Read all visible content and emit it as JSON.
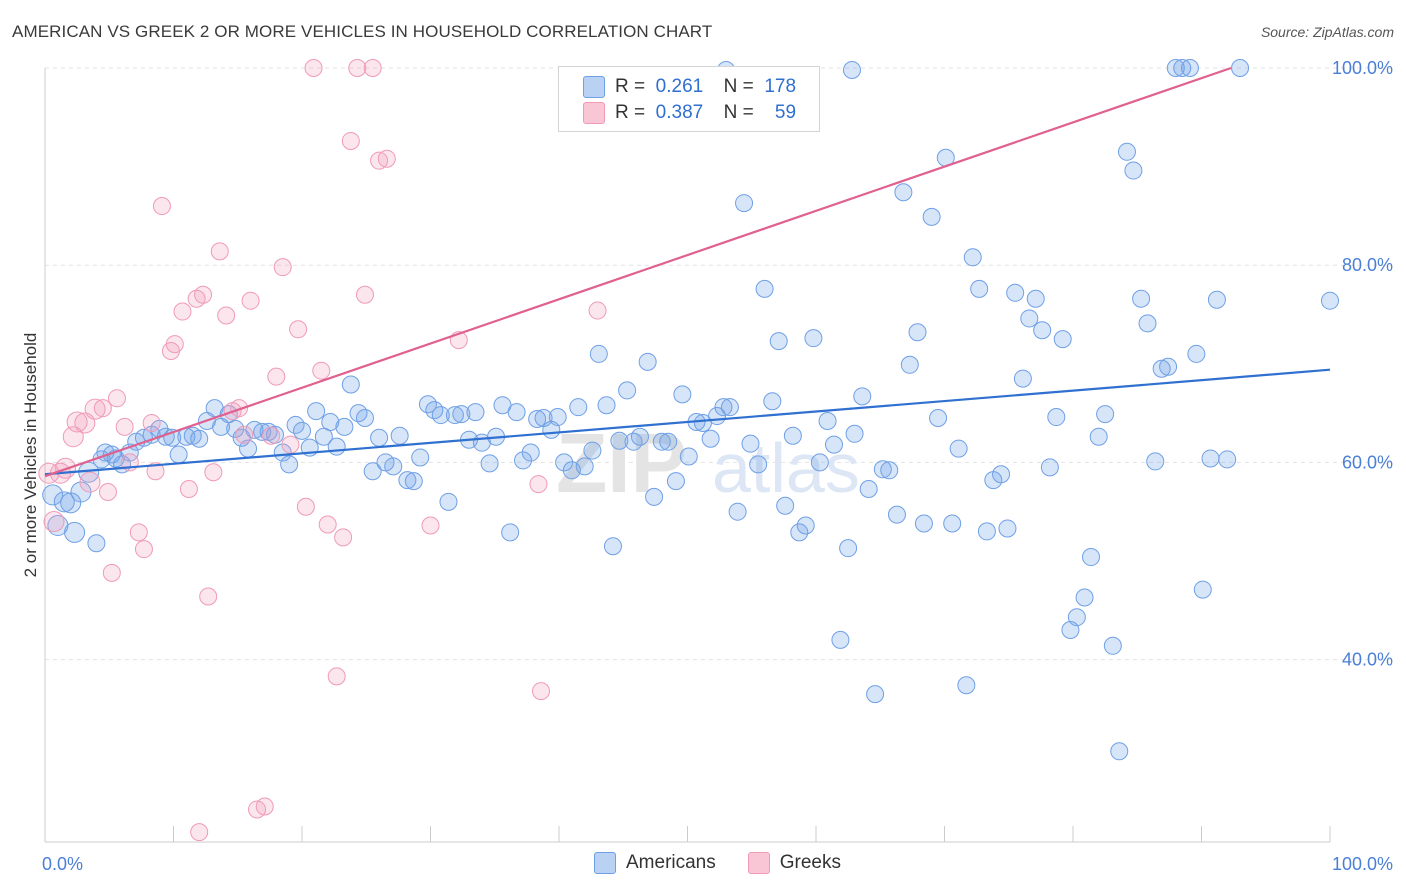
{
  "title": "AMERICAN VS GREEK 2 OR MORE VEHICLES IN HOUSEHOLD CORRELATION CHART",
  "source": "Source: ZipAtlas.com",
  "legend": {
    "rows": [
      {
        "r_label": "R =",
        "r_value": "0.261",
        "n_label": "N =",
        "n_value": "178"
      },
      {
        "r_label": "R =",
        "r_value": "0.387",
        "n_label": "N =",
        "n_value": "59"
      }
    ]
  },
  "bottom_legend": {
    "americans": "Americans",
    "greeks": "Greeks"
  },
  "chart_data": {
    "type": "scatter",
    "title": "AMERICAN VS GREEK 2 OR MORE VEHICLES IN HOUSEHOLD CORRELATION CHART",
    "xlabel": "",
    "ylabel": "2 or more Vehicles in Household",
    "xlim": [
      0,
      100
    ],
    "ylim": [
      21.5,
      100
    ],
    "x_tick_labels": [
      "0.0%",
      "100.0%"
    ],
    "y_ticks": [
      40,
      60,
      80,
      100
    ],
    "y_tick_labels": [
      "40.0%",
      "60.0%",
      "80.0%",
      "100.0%"
    ],
    "grid": true,
    "legend_placement": "top-center",
    "colors": {
      "americans": "#6fa0e6",
      "greeks": "#f09ab8",
      "americans_line": "#2f70d0",
      "greeks_line": "#e06090"
    },
    "series": [
      {
        "name": "Americans",
        "R": 0.261,
        "N": 178,
        "trend": [
          [
            0,
            58.8
          ],
          [
            100,
            69.4
          ]
        ],
        "points": [
          [
            0.6,
            56.7
          ],
          [
            1.0,
            53.6
          ],
          [
            1.5,
            56.0
          ],
          [
            2.0,
            55.9
          ],
          [
            2.3,
            52.9
          ],
          [
            2.8,
            57.0
          ],
          [
            3.4,
            59.0
          ],
          [
            4.0,
            51.8
          ],
          [
            4.4,
            60.3
          ],
          [
            4.7,
            61.0
          ],
          [
            5.2,
            60.8
          ],
          [
            5.5,
            60.4
          ],
          [
            6.0,
            59.8
          ],
          [
            6.6,
            61.0
          ],
          [
            7.1,
            62.1
          ],
          [
            7.7,
            62.5
          ],
          [
            8.3,
            62.8
          ],
          [
            8.9,
            63.4
          ],
          [
            9.4,
            62.6
          ],
          [
            9.9,
            62.5
          ],
          [
            10.4,
            60.8
          ],
          [
            11.0,
            62.6
          ],
          [
            11.5,
            62.7
          ],
          [
            12.0,
            62.4
          ],
          [
            12.6,
            64.2
          ],
          [
            13.2,
            65.5
          ],
          [
            13.7,
            63.6
          ],
          [
            14.3,
            64.9
          ],
          [
            14.8,
            63.4
          ],
          [
            15.3,
            62.5
          ],
          [
            15.8,
            61.4
          ],
          [
            16.3,
            63.3
          ],
          [
            16.9,
            63.1
          ],
          [
            17.4,
            63.1
          ],
          [
            17.9,
            62.8
          ],
          [
            18.5,
            61.0
          ],
          [
            19.0,
            59.8
          ],
          [
            19.5,
            63.8
          ],
          [
            20.0,
            63.2
          ],
          [
            20.6,
            61.5
          ],
          [
            21.1,
            65.2
          ],
          [
            21.7,
            62.6
          ],
          [
            22.2,
            64.1
          ],
          [
            22.7,
            61.6
          ],
          [
            23.3,
            63.6
          ],
          [
            23.8,
            67.9
          ],
          [
            24.4,
            65.0
          ],
          [
            24.9,
            64.5
          ],
          [
            25.5,
            59.1
          ],
          [
            26.0,
            62.5
          ],
          [
            26.5,
            60.0
          ],
          [
            27.1,
            59.6
          ],
          [
            27.6,
            62.7
          ],
          [
            28.2,
            58.2
          ],
          [
            28.7,
            58.1
          ],
          [
            29.2,
            60.5
          ],
          [
            29.8,
            65.9
          ],
          [
            30.3,
            65.3
          ],
          [
            30.8,
            64.8
          ],
          [
            31.4,
            56.0
          ],
          [
            31.9,
            64.8
          ],
          [
            32.4,
            64.9
          ],
          [
            33.0,
            62.3
          ],
          [
            33.5,
            65.1
          ],
          [
            34.0,
            62.0
          ],
          [
            34.6,
            59.9
          ],
          [
            35.1,
            62.6
          ],
          [
            35.6,
            65.8
          ],
          [
            36.2,
            52.9
          ],
          [
            36.7,
            65.1
          ],
          [
            37.2,
            60.2
          ],
          [
            37.8,
            61.0
          ],
          [
            38.3,
            64.4
          ],
          [
            38.8,
            64.5
          ],
          [
            39.4,
            63.3
          ],
          [
            39.9,
            64.6
          ],
          [
            40.4,
            60.0
          ],
          [
            41.0,
            59.2
          ],
          [
            41.5,
            65.6
          ],
          [
            42.0,
            59.6
          ],
          [
            42.6,
            61.2
          ],
          [
            43.1,
            71.0
          ],
          [
            43.7,
            65.8
          ],
          [
            44.2,
            51.5
          ],
          [
            44.7,
            62.2
          ],
          [
            45.3,
            67.3
          ],
          [
            45.8,
            62.1
          ],
          [
            46.3,
            62.6
          ],
          [
            46.9,
            70.2
          ],
          [
            47.4,
            56.5
          ],
          [
            48.0,
            62.1
          ],
          [
            48.5,
            62.1
          ],
          [
            49.1,
            58.1
          ],
          [
            49.6,
            66.9
          ],
          [
            50.1,
            60.6
          ],
          [
            50.7,
            64.1
          ],
          [
            51.2,
            64.0
          ],
          [
            51.8,
            62.4
          ],
          [
            52.3,
            64.7
          ],
          [
            52.8,
            65.6
          ],
          [
            53.3,
            65.6
          ],
          [
            53.9,
            55.0
          ],
          [
            54.4,
            86.3
          ],
          [
            54.9,
            61.9
          ],
          [
            55.5,
            59.8
          ],
          [
            56.0,
            77.6
          ],
          [
            56.6,
            66.2
          ],
          [
            57.1,
            72.3
          ],
          [
            57.6,
            55.6
          ],
          [
            58.2,
            62.7
          ],
          [
            58.7,
            52.9
          ],
          [
            59.2,
            53.6
          ],
          [
            59.8,
            72.6
          ],
          [
            60.3,
            60.0
          ],
          [
            60.9,
            64.2
          ],
          [
            61.4,
            61.8
          ],
          [
            61.9,
            42.0
          ],
          [
            62.5,
            51.3
          ],
          [
            63.0,
            62.9
          ],
          [
            63.6,
            66.7
          ],
          [
            64.1,
            57.3
          ],
          [
            64.6,
            36.5
          ],
          [
            65.2,
            59.3
          ],
          [
            65.7,
            59.2
          ],
          [
            66.3,
            54.7
          ],
          [
            66.8,
            87.4
          ],
          [
            67.3,
            69.9
          ],
          [
            67.9,
            73.2
          ],
          [
            68.4,
            53.8
          ],
          [
            69.0,
            84.9
          ],
          [
            69.5,
            64.5
          ],
          [
            70.1,
            90.9
          ],
          [
            70.6,
            53.8
          ],
          [
            71.1,
            61.4
          ],
          [
            71.7,
            37.4
          ],
          [
            72.2,
            80.8
          ],
          [
            72.7,
            77.6
          ],
          [
            73.3,
            53.0
          ],
          [
            73.8,
            58.2
          ],
          [
            74.4,
            58.8
          ],
          [
            74.9,
            53.3
          ],
          [
            75.5,
            77.2
          ],
          [
            76.1,
            68.5
          ],
          [
            76.6,
            74.6
          ],
          [
            77.1,
            76.6
          ],
          [
            77.6,
            73.4
          ],
          [
            78.2,
            59.5
          ],
          [
            78.7,
            64.6
          ],
          [
            79.2,
            72.5
          ],
          [
            79.8,
            43.0
          ],
          [
            80.3,
            44.3
          ],
          [
            80.9,
            46.3
          ],
          [
            81.4,
            50.4
          ],
          [
            82.0,
            62.6
          ],
          [
            82.5,
            64.9
          ],
          [
            83.1,
            41.4
          ],
          [
            83.6,
            30.7
          ],
          [
            84.2,
            91.5
          ],
          [
            84.7,
            89.6
          ],
          [
            85.3,
            76.6
          ],
          [
            85.8,
            74.1
          ],
          [
            86.4,
            60.1
          ],
          [
            86.9,
            69.5
          ],
          [
            87.4,
            69.7
          ],
          [
            88.0,
            100.0
          ],
          [
            88.5,
            100.0
          ],
          [
            89.1,
            100.0
          ],
          [
            89.6,
            71.0
          ],
          [
            90.1,
            47.1
          ],
          [
            90.7,
            60.4
          ],
          [
            91.2,
            76.5
          ],
          [
            92.0,
            60.3
          ],
          [
            93.0,
            100.0
          ],
          [
            100.0,
            76.4
          ],
          [
            53.0,
            99.8
          ],
          [
            62.8,
            99.8
          ]
        ]
      },
      {
        "name": "Greeks",
        "R": 0.387,
        "N": 59,
        "trend": [
          [
            0,
            58.6
          ],
          [
            92.3,
            100.0
          ]
        ],
        "points": [
          [
            0.3,
            58.9
          ],
          [
            0.7,
            54.0
          ],
          [
            1.2,
            58.9
          ],
          [
            1.6,
            59.4
          ],
          [
            2.2,
            62.6
          ],
          [
            2.5,
            64.1
          ],
          [
            3.1,
            64.0
          ],
          [
            3.5,
            58.0
          ],
          [
            3.9,
            65.4
          ],
          [
            4.5,
            65.5
          ],
          [
            4.9,
            57.0
          ],
          [
            5.2,
            48.8
          ],
          [
            5.6,
            66.5
          ],
          [
            6.2,
            63.6
          ],
          [
            6.6,
            60.0
          ],
          [
            7.3,
            52.9
          ],
          [
            7.7,
            51.2
          ],
          [
            8.3,
            64.0
          ],
          [
            8.6,
            59.1
          ],
          [
            9.1,
            86.0
          ],
          [
            9.8,
            71.3
          ],
          [
            10.1,
            72.0
          ],
          [
            10.7,
            75.3
          ],
          [
            11.2,
            57.3
          ],
          [
            11.8,
            76.6
          ],
          [
            12.3,
            77.0
          ],
          [
            12.7,
            46.4
          ],
          [
            13.1,
            59.0
          ],
          [
            13.6,
            81.4
          ],
          [
            14.1,
            74.9
          ],
          [
            14.6,
            65.2
          ],
          [
            15.1,
            65.5
          ],
          [
            15.5,
            62.8
          ],
          [
            16.0,
            76.4
          ],
          [
            16.5,
            24.8
          ],
          [
            17.1,
            25.1
          ],
          [
            17.6,
            62.7
          ],
          [
            18.0,
            68.7
          ],
          [
            18.5,
            79.8
          ],
          [
            19.1,
            61.8
          ],
          [
            19.7,
            73.5
          ],
          [
            20.3,
            55.5
          ],
          [
            20.9,
            100.0
          ],
          [
            21.5,
            69.3
          ],
          [
            22.0,
            53.7
          ],
          [
            22.7,
            38.3
          ],
          [
            23.2,
            52.4
          ],
          [
            23.8,
            92.6
          ],
          [
            24.3,
            100.0
          ],
          [
            24.9,
            77.0
          ],
          [
            25.5,
            100.0
          ],
          [
            26.0,
            90.6
          ],
          [
            26.6,
            90.8
          ],
          [
            32.2,
            72.4
          ],
          [
            38.6,
            36.8
          ],
          [
            43.0,
            75.4
          ],
          [
            12.0,
            22.5
          ],
          [
            30.0,
            53.6
          ],
          [
            38.4,
            57.8
          ]
        ]
      }
    ]
  }
}
